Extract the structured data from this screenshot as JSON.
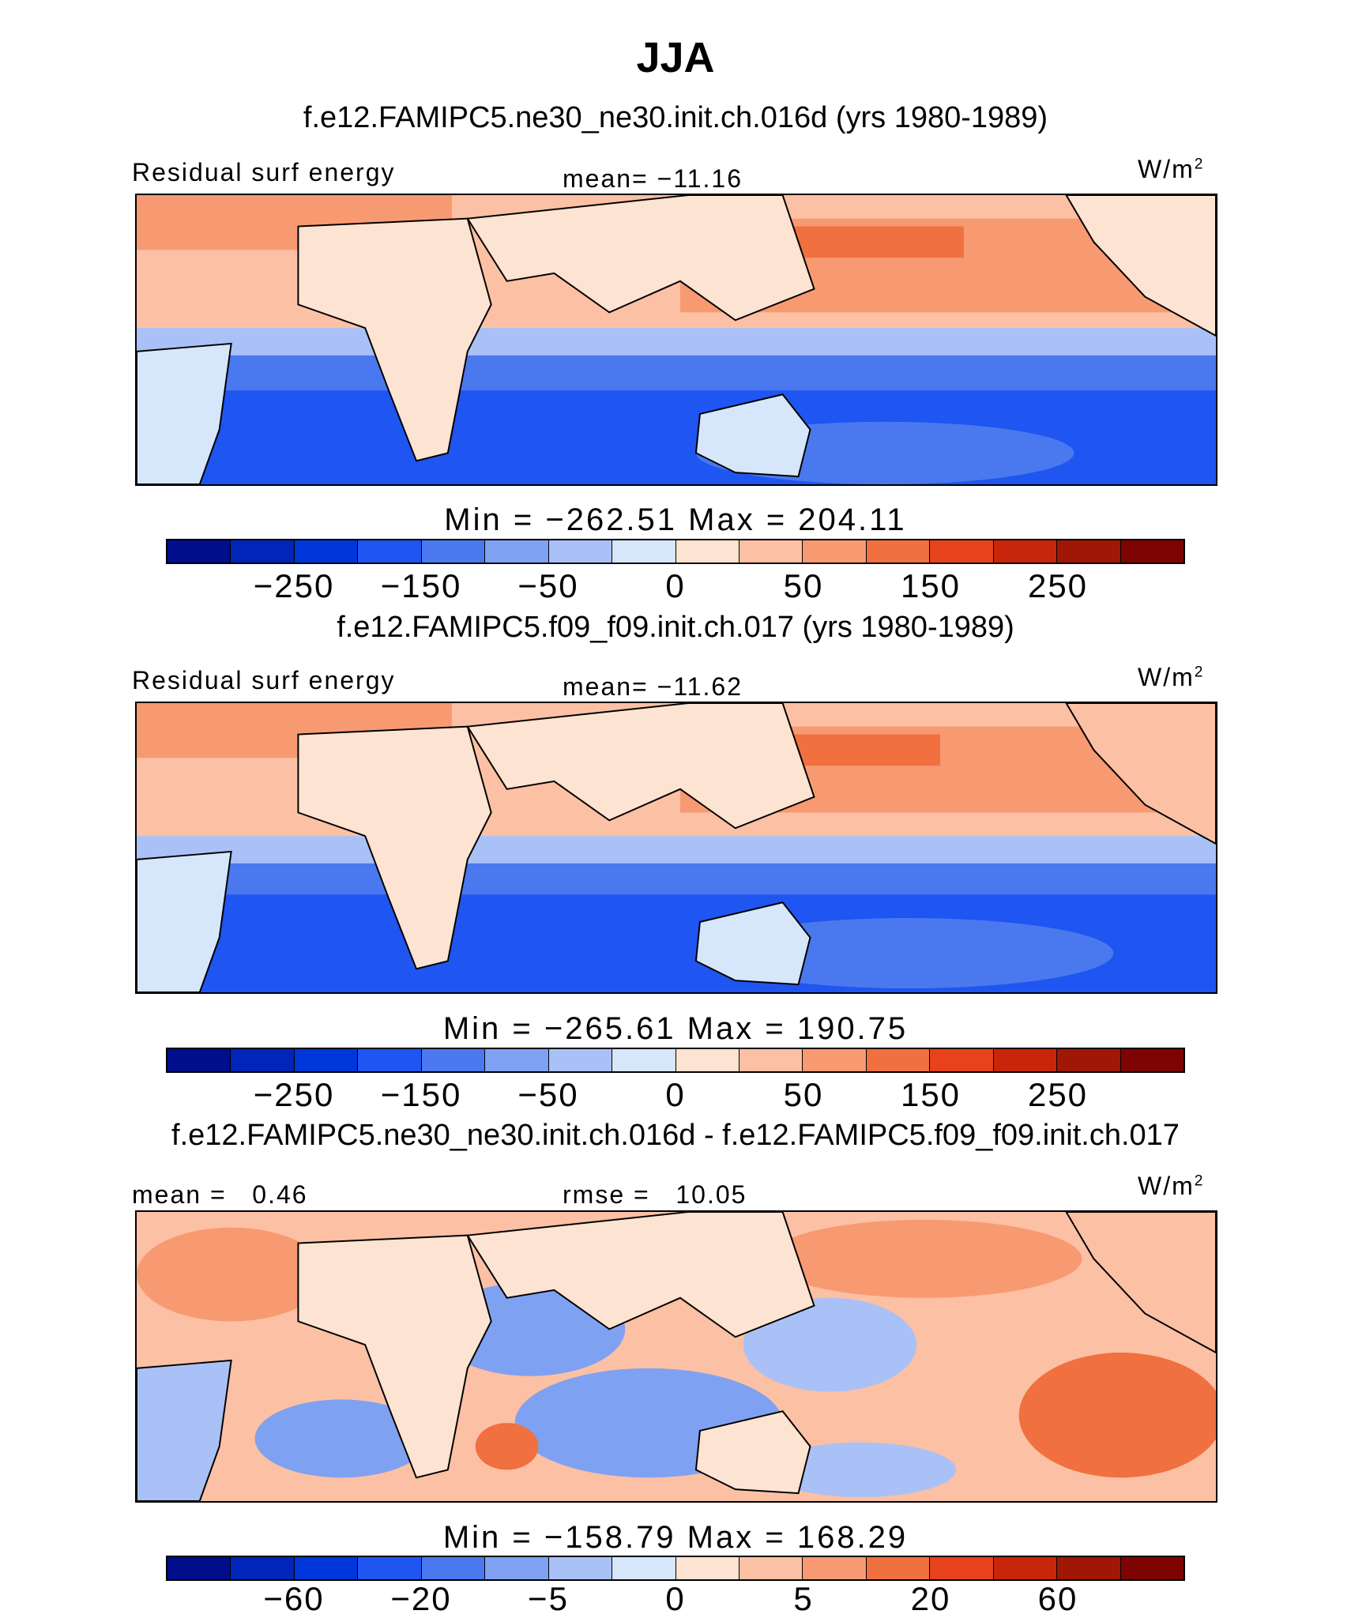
{
  "title": "JJA",
  "colors": {
    "palette": [
      "#000e8c",
      "#0025b8",
      "#0037db",
      "#1f55f0",
      "#4a78ee",
      "#7fa1f2",
      "#a9c1f6",
      "#d6e6fb",
      "#fde3d1",
      "#fcc0a4",
      "#f79a72",
      "#f0703f",
      "#e6431c",
      "#c8260a",
      "#a01706",
      "#7e0303"
    ],
    "land": "#d6e6fb",
    "coast": "#000000"
  },
  "panels": [
    {
      "case_title": "f.e12.FAMIPC5.ne30_ne30.init.ch.016d (yrs 1980-1989)",
      "left_label": "Residual surf energy",
      "center_label": "mean= −11.16",
      "units": "W/m",
      "units_sup": "2",
      "minmax": "Min = −262.51 Max = 204.11",
      "colorbar_ticks": [
        "−250",
        "−150",
        "−50",
        "0",
        "50",
        "150",
        "250"
      ]
    },
    {
      "case_title": "f.e12.FAMIPC5.f09_f09.init.ch.017 (yrs 1980-1989)",
      "left_label": "Residual surf energy",
      "center_label": "mean= −11.62",
      "units": "W/m",
      "units_sup": "2",
      "minmax": "Min = −265.61 Max = 190.75",
      "colorbar_ticks": [
        "−250",
        "−150",
        "−50",
        "0",
        "50",
        "150",
        "250"
      ]
    },
    {
      "case_title": "f.e12.FAMIPC5.ne30_ne30.init.ch.016d - f.e12.FAMIPC5.f09_f09.init.ch.017",
      "left_label": "mean =   0.46",
      "center_label": "rmse =   10.05",
      "units": "W/m",
      "units_sup": "2",
      "minmax": "Min = −158.79 Max = 168.29",
      "colorbar_ticks": [
        "−60",
        "−20",
        "−5",
        "0",
        "5",
        "20",
        "60"
      ]
    }
  ]
}
